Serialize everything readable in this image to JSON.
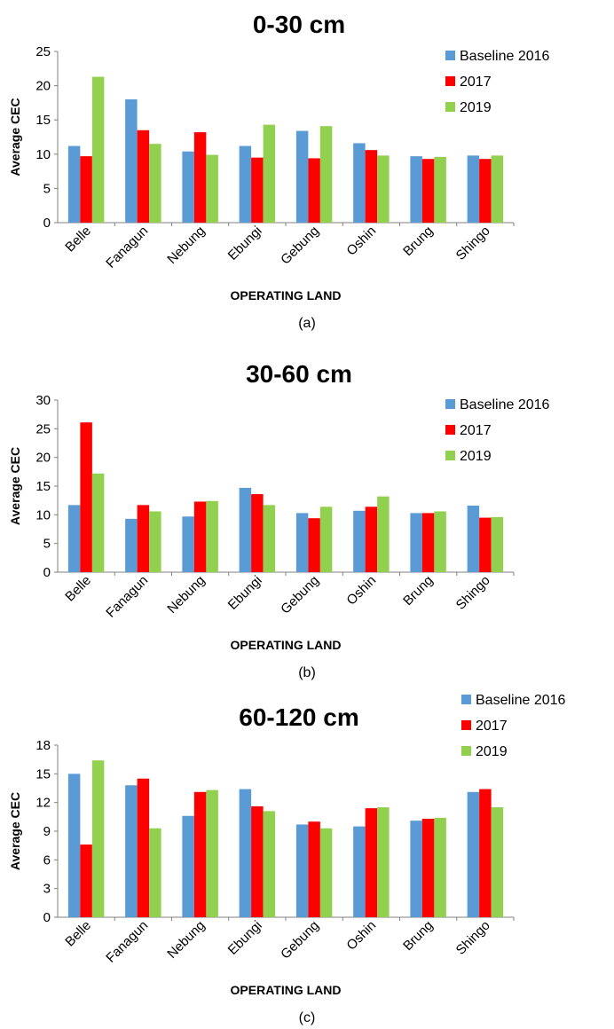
{
  "chart_data": [
    {
      "type": "bar",
      "title": "0-30 cm",
      "xlabel": "OPERATING LAND",
      "ylabel": "Average CEC",
      "caption": "(a)",
      "categories": [
        "Belle",
        "Fanagun",
        "Nebung",
        "Ebungi",
        "Gebung",
        "Oshin",
        "Brung",
        "Shingo"
      ],
      "ylim": [
        0,
        25
      ],
      "yticks": [
        0,
        5,
        10,
        15,
        20,
        25
      ],
      "grid": false,
      "legend_position": "top-right",
      "series": [
        {
          "name": "Baseline 2016",
          "color": "#5B9BD5",
          "values": [
            11.2,
            18.0,
            10.4,
            11.2,
            13.4,
            11.6,
            9.7,
            9.8
          ]
        },
        {
          "name": "2017",
          "color": "#FF0000",
          "values": [
            9.7,
            13.5,
            13.2,
            9.5,
            9.4,
            10.6,
            9.3,
            9.3
          ]
        },
        {
          "name": "2019",
          "color": "#92D050",
          "values": [
            21.3,
            11.5,
            9.9,
            14.3,
            14.1,
            9.8,
            9.6,
            9.8
          ]
        }
      ]
    },
    {
      "type": "bar",
      "title": "30-60 cm",
      "xlabel": "OPERATING LAND",
      "ylabel": "Average CEC",
      "caption": "(b)",
      "categories": [
        "Belle",
        "Fanagun",
        "Nebung",
        "Ebungi",
        "Gebung",
        "Oshin",
        "Brung",
        "Shingo"
      ],
      "ylim": [
        0,
        30
      ],
      "yticks": [
        0,
        5,
        10,
        15,
        20,
        25,
        30
      ],
      "grid": false,
      "legend_position": "top-right",
      "series": [
        {
          "name": "Baseline 2016",
          "color": "#5B9BD5",
          "values": [
            11.7,
            9.3,
            9.7,
            14.7,
            10.3,
            10.7,
            10.3,
            11.6
          ]
        },
        {
          "name": "2017",
          "color": "#FF0000",
          "values": [
            26.1,
            11.7,
            12.3,
            13.6,
            9.4,
            11.4,
            10.3,
            9.5
          ]
        },
        {
          "name": "2019",
          "color": "#92D050",
          "values": [
            17.2,
            10.6,
            12.4,
            11.7,
            11.4,
            13.2,
            10.6,
            9.6
          ]
        }
      ]
    },
    {
      "type": "bar",
      "title": "60-120 cm",
      "xlabel": "OPERATING LAND",
      "ylabel": "Average CEC",
      "caption": "(c)",
      "categories": [
        "Belle",
        "Fanagun",
        "Nebung",
        "Ebungi",
        "Gebung",
        "Oshin",
        "Brung",
        "Shingo"
      ],
      "ylim": [
        0,
        18
      ],
      "yticks": [
        0,
        3,
        6,
        9,
        12,
        15,
        18
      ],
      "grid": false,
      "legend_position": "top-right",
      "series": [
        {
          "name": "Baseline 2016",
          "color": "#5B9BD5",
          "values": [
            15.0,
            13.8,
            10.6,
            13.4,
            9.7,
            9.5,
            10.1,
            13.1
          ]
        },
        {
          "name": "2017",
          "color": "#FF0000",
          "values": [
            7.6,
            14.5,
            13.1,
            11.6,
            10.0,
            11.4,
            10.3,
            13.4
          ]
        },
        {
          "name": "2019",
          "color": "#92D050",
          "values": [
            16.4,
            9.3,
            13.3,
            11.1,
            9.3,
            11.5,
            10.4,
            11.5
          ]
        }
      ]
    }
  ]
}
